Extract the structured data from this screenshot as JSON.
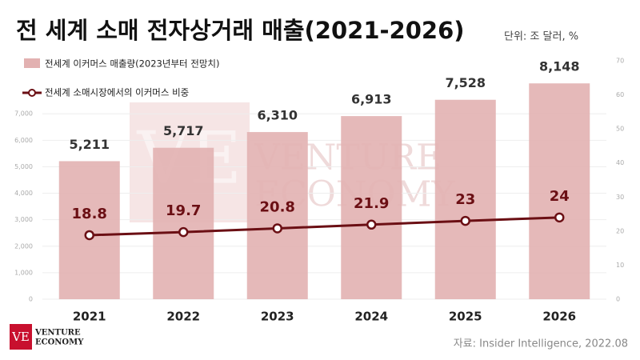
{
  "chart_data": {
    "type": "bar-line",
    "title": "전 세계 소매 전자상거래 매출(2021-2026)",
    "subtitle": "단위: 조 달러, %",
    "source": "자료: Insider Intelligence, 2022.08",
    "logo": {
      "mark": "VE",
      "lines": [
        "VENTURE",
        "ECONOMY"
      ]
    },
    "watermark": {
      "mark": "VE",
      "lines": [
        "VENTURE",
        "ECONOMY"
      ]
    },
    "categories": [
      "2021",
      "2022",
      "2023",
      "2024",
      "2025",
      "2026"
    ],
    "series": [
      {
        "name": "전세계 이커머스 매출량(2023년부터 전망치)",
        "type": "bar",
        "color": "#e2b1b1",
        "values": [
          5211,
          5717,
          6310,
          6913,
          7528,
          8148
        ],
        "value_labels": [
          "5,211",
          "5,717",
          "6,310",
          "6,913",
          "7,528",
          "8,148"
        ]
      },
      {
        "name": "전세계 소매시장에서의 이커머스 비중",
        "type": "line",
        "color": "#6b0f14",
        "axis": "y2",
        "values": [
          18.8,
          19.7,
          20.8,
          21.9,
          23,
          24
        ]
      }
    ],
    "ylim": [
      0,
      9000
    ],
    "yticks": [
      0,
      {
        "value": 1000,
        "label": "1,000"
      },
      {
        "value": 2000,
        "label": "2,000"
      },
      {
        "value": 3000,
        "label": "3,000"
      },
      {
        "value": 4000,
        "label": "4,000"
      },
      {
        "value": 5000,
        "label": "5,000"
      },
      {
        "value": 6000,
        "label": "6,000"
      },
      {
        "value": 7000,
        "label": "7,000"
      }
    ],
    "y2lim": [
      0,
      70
    ],
    "y2ticks": [
      0,
      10,
      20,
      30,
      40,
      50,
      60,
      70
    ],
    "grid": true,
    "legend": "top-left"
  }
}
